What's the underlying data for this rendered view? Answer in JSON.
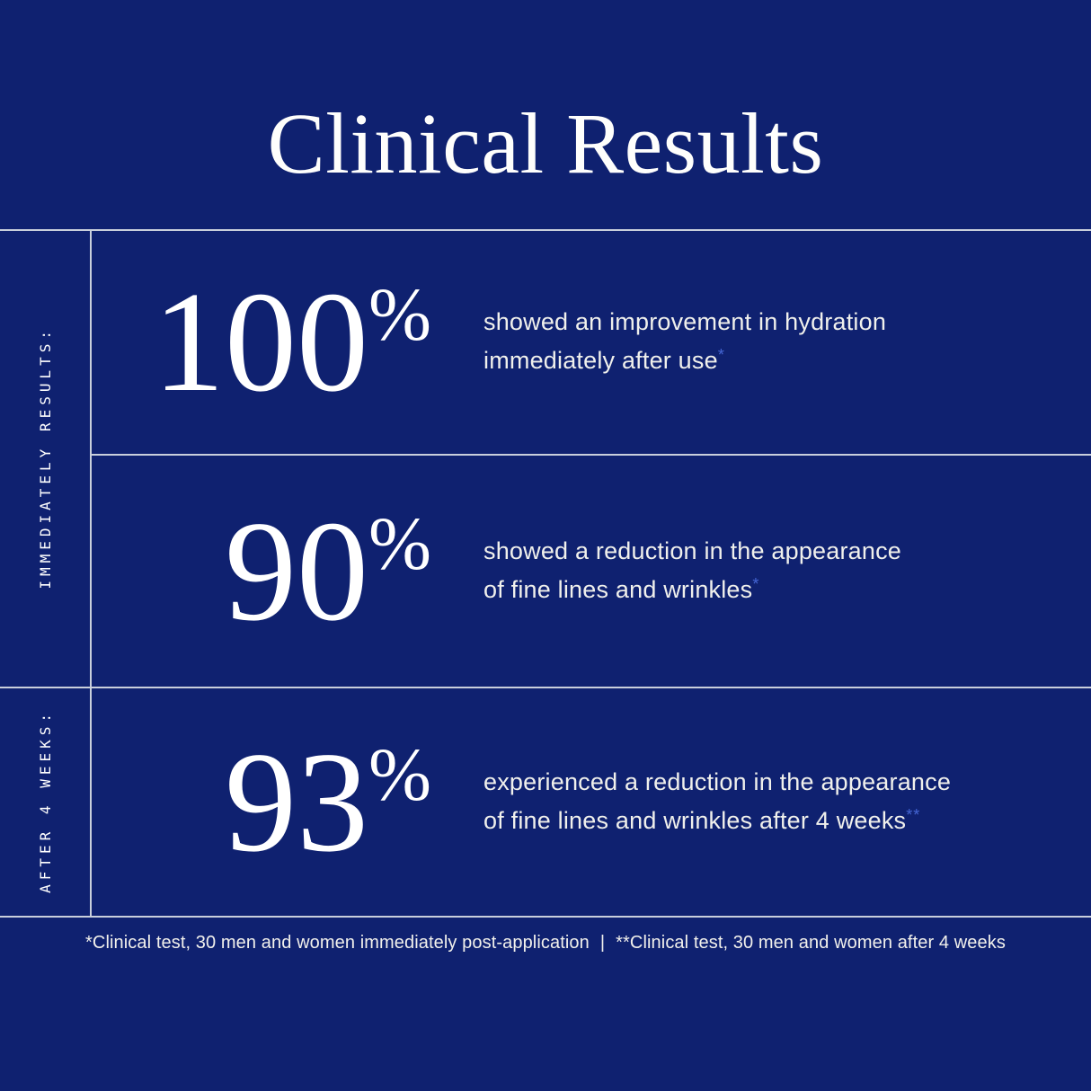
{
  "page": {
    "title": "Clinical Results",
    "background_color": "#0f2170",
    "line_color": "#c9cfdc",
    "accent_marker_color": "#4566d4"
  },
  "sections": [
    {
      "label": "IMMEDIATELY RESULTS:"
    },
    {
      "label": "AFTER 4 WEEKS:"
    }
  ],
  "stats": [
    {
      "value": "100",
      "unit": "%",
      "description_line1": "showed an improvement in hydration",
      "description_line2": "immediately after use",
      "footnote_marker": "*"
    },
    {
      "value": "90",
      "unit": "%",
      "description_line1": "showed a reduction in the appearance",
      "description_line2": "of fine lines and wrinkles",
      "footnote_marker": "*"
    },
    {
      "value": "93",
      "unit": "%",
      "description_line1": "experienced a reduction in the appearance",
      "description_line2": "of fine lines and wrinkles after 4 weeks",
      "footnote_marker": "**"
    }
  ],
  "footnote": {
    "part1": "*Clinical test, 30 men and women immediately post-application",
    "separator": "|",
    "part2": "**Clinical test, 30 men and women after 4 weeks"
  }
}
